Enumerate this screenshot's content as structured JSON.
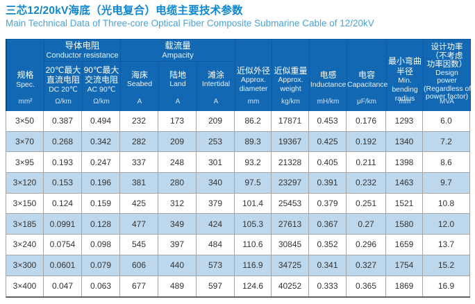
{
  "title": {
    "cn": "三芯12/20kV海底（光电复合）电缆主要技术参数",
    "en": "Main Technical Data of Three-core Optical Fiber Composite Submarine Cable of 12/20kV"
  },
  "colors": {
    "header_bg": "#1268b3",
    "header_divider": "#0d5a9c",
    "header_edge": "#15406b",
    "alt_row": "#bdd7ec",
    "row_border": "#a5a5a5",
    "bottom_border": "#5a6066",
    "title_cn": "#0e86cf",
    "title_en": "#4aa3da",
    "body_text": "#333333",
    "unit_text": "#cfe3f4"
  },
  "table": {
    "header": {
      "spec": {
        "cn": "规格",
        "en": "Spec.",
        "unit": "mm²"
      },
      "groups": [
        {
          "cn": "导体电阻",
          "en": "Conductor resistance"
        },
        {
          "cn": "载流量",
          "en": "Ampacity"
        }
      ],
      "sub": [
        {
          "cn": [
            "20℃最大",
            "直流电阻"
          ],
          "en": [
            "DC 20℃"
          ],
          "unit": "Ω/km"
        },
        {
          "cn": [
            "90℃最大",
            "交流电阻"
          ],
          "en": [
            "AC 90℃"
          ],
          "unit": "Ω/km"
        },
        {
          "cn": [
            "海床"
          ],
          "en": [
            "Seabed"
          ],
          "unit": "A"
        },
        {
          "cn": [
            "陆地"
          ],
          "en": [
            "Land"
          ],
          "unit": "A"
        },
        {
          "cn": [
            "滩涂"
          ],
          "en": [
            "Intertidal"
          ],
          "unit": "A"
        }
      ],
      "tall": [
        {
          "cn": [
            "近似外径"
          ],
          "en": [
            "Approx.",
            "diameter"
          ],
          "unit": "mm"
        },
        {
          "cn": [
            "近似重量"
          ],
          "en": [
            "Approx.",
            "weight"
          ],
          "unit": "kg/km"
        },
        {
          "cn": [
            "电感"
          ],
          "en": [
            "Inductance"
          ],
          "unit": "mH/km"
        },
        {
          "cn": [
            "电容"
          ],
          "en": [
            "Capacitance"
          ],
          "unit": "μF/km"
        },
        {
          "cn": [
            "最小弯曲",
            "半径"
          ],
          "en": [
            "Min.",
            "bending",
            "radius"
          ],
          "unit": "mm"
        },
        {
          "cn": [
            "设计功率",
            "（不考虑",
            "功率因数）"
          ],
          "en": [
            "Design",
            "power",
            "(Regardless of",
            "power factor)"
          ],
          "unit": "MVA",
          "design": true
        }
      ]
    },
    "rows": [
      [
        "3×50",
        "0.387",
        "0.494",
        "232",
        "173",
        "209",
        "86.2",
        "17871",
        "0.453",
        "0.176",
        "1293",
        "6.0"
      ],
      [
        "3×70",
        "0.268",
        "0.342",
        "282",
        "209",
        "253",
        "89.3",
        "19367",
        "0.425",
        "0.192",
        "1340",
        "7.2"
      ],
      [
        "3×95",
        "0.193",
        "0.247",
        "337",
        "248",
        "301",
        "93.2",
        "21328",
        "0.405",
        "0.211",
        "1398",
        "8.6"
      ],
      [
        "3×120",
        "0.153",
        "0.196",
        "381",
        "280",
        "340",
        "97.5",
        "23297",
        "0.391",
        "0.232",
        "1463",
        "9.7"
      ],
      [
        "3×150",
        "0.124",
        "0.159",
        "425",
        "312",
        "379",
        "101.4",
        "25453",
        "0.379",
        "0.251",
        "1521",
        "10.8"
      ],
      [
        "3×185",
        "0.0991",
        "0.128",
        "477",
        "349",
        "424",
        "105.3",
        "27613",
        "0.367",
        "0.27",
        "1580",
        "12.0"
      ],
      [
        "3×240",
        "0.0754",
        "0.098",
        "545",
        "397",
        "484",
        "110.6",
        "30845",
        "0.352",
        "0.296",
        "1659",
        "13.7"
      ],
      [
        "3×300",
        "0.0601",
        "0.079",
        "606",
        "440",
        "573",
        "116.9",
        "34725",
        "0.341",
        "0.327",
        "1754",
        "15.2"
      ],
      [
        "3×400",
        "0.047",
        "0.063",
        "677",
        "489",
        "597",
        "124.6",
        "40252",
        "0.333",
        "0.365",
        "1869",
        "16.9"
      ]
    ]
  }
}
